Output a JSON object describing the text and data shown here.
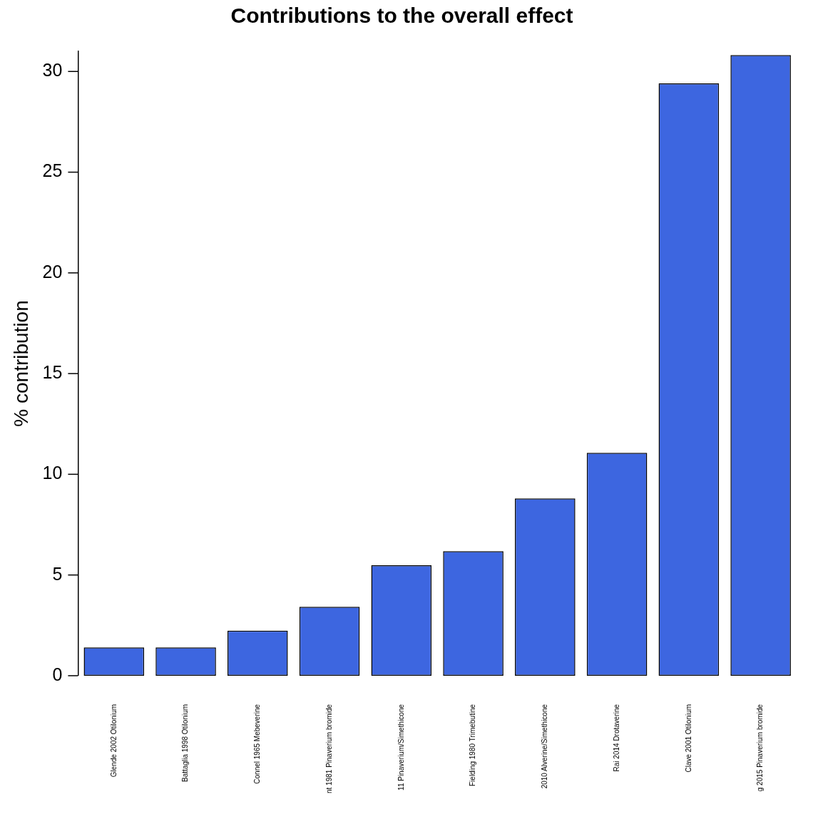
{
  "chart_data": {
    "type": "bar",
    "title": "Contributions to the overall effect",
    "ylabel": "% contribution",
    "categories": [
      "Glende 2002 Otilonium",
      "Battaglia 1998 Otilonium",
      "Connel 1965 Mebeverine",
      "nt 1981 Pinaverium bromide",
      "11 Pinaverium/Simethicone",
      "Fielding 1980 Trimebutine",
      "2010 Alverine/Simethicone",
      "Rai 2014 Drotaverine",
      "Clave 2001 Otilonium",
      "g 2015 Pinaverium bromide"
    ],
    "values": [
      1.4,
      1.4,
      2.24,
      3.42,
      5.48,
      6.18,
      8.8,
      11.07,
      29.41,
      30.81
    ],
    "color": "#3d66e0",
    "ylim": [
      0,
      31
    ],
    "yticks": [
      0,
      5,
      10,
      15,
      20,
      25,
      30
    ],
    "grid": false,
    "legend": false
  }
}
